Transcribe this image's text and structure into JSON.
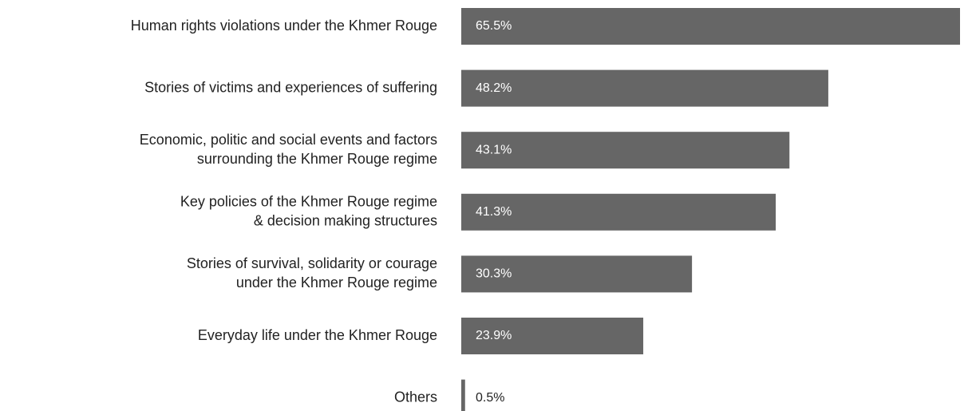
{
  "chart_data": {
    "type": "bar",
    "orientation": "horizontal",
    "color": "#666666",
    "categories": [
      [
        "Human rights violations under the Khmer Rouge"
      ],
      [
        "Stories of victims and experiences of suffering"
      ],
      [
        "Economic, politic and social events and factors",
        "surrounding the Khmer Rouge regime"
      ],
      [
        "Key policies of the Khmer Rouge regime",
        "& decision making structures"
      ],
      [
        "Stories of survival, solidarity or courage",
        "under the Khmer Rouge regime"
      ],
      [
        "Everyday life under the Khmer Rouge"
      ],
      [
        "Others"
      ]
    ],
    "values": [
      65.5,
      48.2,
      43.1,
      41.3,
      30.3,
      23.9,
      0.5
    ],
    "value_labels": [
      "65.5%",
      "48.2%",
      "43.1%",
      "41.3%",
      "30.3%",
      "23.9%",
      "0.5%"
    ]
  }
}
